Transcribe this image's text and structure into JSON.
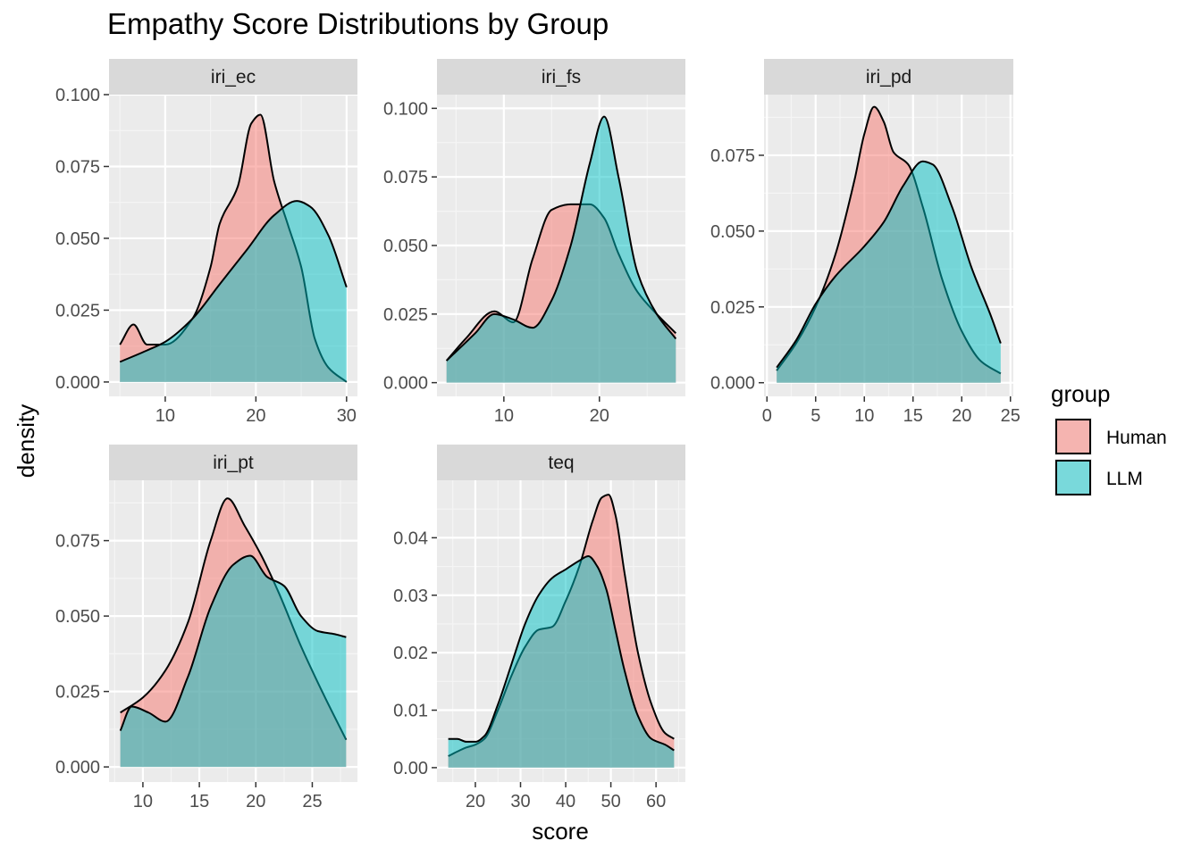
{
  "chart_data": {
    "type": "area",
    "title": "Empathy Score Distributions by Group",
    "xlabel": "score",
    "ylabel": "density",
    "legend": {
      "title": "group",
      "placement": "right",
      "entries": [
        {
          "name": "Human",
          "color": "#F8766D"
        },
        {
          "name": "LLM",
          "color": "#00BFC4"
        }
      ]
    },
    "panels": [
      {
        "label": "iri_ec",
        "xlim": [
          3.8,
          31.2
        ],
        "ylim": [
          -0.005,
          0.1
        ],
        "xticks": [
          10,
          20,
          30
        ],
        "yticks": [
          0,
          0.025,
          0.05,
          0.075,
          0.1
        ],
        "ytick_labels": [
          "0.000",
          "0.025",
          "0.050",
          "0.075",
          "0.100"
        ],
        "series": [
          {
            "name": "Human",
            "x": [
              5,
              6.5,
              8,
              10,
              13,
              15,
              16,
              18,
              19.5,
              20.5,
              22,
              23.5,
              25,
              26.5,
              28,
              30
            ],
            "y": [
              0.013,
              0.02,
              0.013,
              0.013,
              0.022,
              0.04,
              0.055,
              0.068,
              0.09,
              0.093,
              0.07,
              0.055,
              0.04,
              0.015,
              0.005,
              0.0
            ]
          },
          {
            "name": "LLM",
            "x": [
              5,
              8,
              10,
              13,
              16,
              19,
              22,
              24.5,
              26,
              28,
              30
            ],
            "y": [
              0.007,
              0.011,
              0.014,
              0.022,
              0.034,
              0.046,
              0.058,
              0.063,
              0.061,
              0.051,
              0.033
            ]
          }
        ]
      },
      {
        "label": "iri_fs",
        "xlim": [
          3,
          29
        ],
        "ylim": [
          -0.005,
          0.105
        ],
        "xticks": [
          10,
          20
        ],
        "yticks": [
          0,
          0.025,
          0.05,
          0.075,
          0.1
        ],
        "ytick_labels": [
          "0.000",
          "0.025",
          "0.050",
          "0.075",
          "0.100"
        ],
        "series": [
          {
            "name": "Human",
            "x": [
              4,
              6,
              9,
              11,
              13,
              15,
              17,
              19,
              20.5,
              22,
              24,
              26,
              28
            ],
            "y": [
              0.008,
              0.016,
              0.026,
              0.022,
              0.045,
              0.063,
              0.065,
              0.065,
              0.06,
              0.047,
              0.033,
              0.025,
              0.018
            ]
          },
          {
            "name": "LLM",
            "x": [
              4,
              7,
              9,
              11,
              13,
              15,
              17,
              19,
              20.5,
              22,
              24,
              26,
              28
            ],
            "y": [
              0.008,
              0.018,
              0.025,
              0.023,
              0.02,
              0.03,
              0.05,
              0.08,
              0.097,
              0.075,
              0.04,
              0.025,
              0.016
            ]
          }
        ]
      },
      {
        "label": "iri_pd",
        "xlim": [
          -0.3,
          25.3
        ],
        "ylim": [
          -0.0045,
          0.095
        ],
        "xticks": [
          0,
          5,
          10,
          15,
          20,
          25
        ],
        "yticks": [
          0,
          0.025,
          0.05,
          0.075
        ],
        "ytick_labels": [
          "0.000",
          "0.025",
          "0.050",
          "0.075"
        ],
        "series": [
          {
            "name": "Human",
            "x": [
              1,
              3,
              5,
              7,
              9,
              10,
              11,
              12,
              13,
              14.5,
              16,
              18,
              20,
              22,
              24
            ],
            "y": [
              0.004,
              0.013,
              0.025,
              0.042,
              0.067,
              0.082,
              0.091,
              0.086,
              0.076,
              0.072,
              0.058,
              0.034,
              0.017,
              0.007,
              0.003
            ]
          },
          {
            "name": "LLM",
            "x": [
              1,
              3,
              5,
              7,
              10,
              12,
              14,
              16,
              17,
              19,
              21,
              23,
              24
            ],
            "y": [
              0.005,
              0.014,
              0.026,
              0.035,
              0.045,
              0.053,
              0.065,
              0.073,
              0.072,
              0.058,
              0.038,
              0.022,
              0.013
            ]
          }
        ]
      },
      {
        "label": "iri_pt",
        "xlim": [
          7,
          29
        ],
        "ylim": [
          -0.005,
          0.095
        ],
        "xticks": [
          10,
          15,
          20,
          25
        ],
        "yticks": [
          0,
          0.025,
          0.05,
          0.075
        ],
        "ytick_labels": [
          "0.000",
          "0.025",
          "0.050",
          "0.075"
        ],
        "series": [
          {
            "name": "Human",
            "x": [
              8,
              10,
              12,
              14,
              16,
              17.5,
              19,
              20.5,
              22,
              24,
              26,
              28
            ],
            "y": [
              0.018,
              0.023,
              0.032,
              0.048,
              0.075,
              0.089,
              0.08,
              0.07,
              0.058,
              0.04,
              0.024,
              0.009
            ]
          },
          {
            "name": "LLM",
            "x": [
              8,
              9,
              10.5,
              12,
              14,
              16,
              18,
              19.5,
              21,
              22.5,
              24,
              25.5,
              27,
              28
            ],
            "y": [
              0.012,
              0.02,
              0.018,
              0.015,
              0.03,
              0.053,
              0.067,
              0.07,
              0.063,
              0.06,
              0.05,
              0.045,
              0.044,
              0.043
            ]
          }
        ]
      },
      {
        "label": "teq",
        "xlim": [
          11.5,
          66.5
        ],
        "ylim": [
          -0.0025,
          0.05
        ],
        "xticks": [
          20,
          30,
          40,
          50,
          60
        ],
        "yticks": [
          0,
          0.01,
          0.02,
          0.03,
          0.04
        ],
        "ytick_labels": [
          "0.00",
          "0.01",
          "0.02",
          "0.03",
          "0.04"
        ],
        "series": [
          {
            "name": "Human",
            "x": [
              14,
              16,
              18,
              20,
              22,
              25,
              28,
              31,
              34,
              37,
              40,
              43,
              46,
              48,
              49.5,
              51,
              53,
              56,
              59,
              62,
              64
            ],
            "y": [
              0.002,
              0.0028,
              0.0035,
              0.004,
              0.005,
              0.01,
              0.016,
              0.021,
              0.024,
              0.0245,
              0.029,
              0.035,
              0.043,
              0.047,
              0.0475,
              0.044,
              0.034,
              0.02,
              0.011,
              0.006,
              0.005
            ]
          },
          {
            "name": "LLM",
            "x": [
              14,
              16,
              18,
              20,
              22,
              25,
              28,
              31,
              34,
              37,
              40,
              43,
              45,
              47,
              49,
              51,
              53,
              56,
              59,
              62,
              64
            ],
            "y": [
              0.005,
              0.005,
              0.0045,
              0.0045,
              0.0055,
              0.011,
              0.018,
              0.025,
              0.03,
              0.033,
              0.0345,
              0.036,
              0.0368,
              0.035,
              0.031,
              0.024,
              0.017,
              0.009,
              0.005,
              0.004,
              0.003
            ]
          }
        ]
      }
    ]
  }
}
